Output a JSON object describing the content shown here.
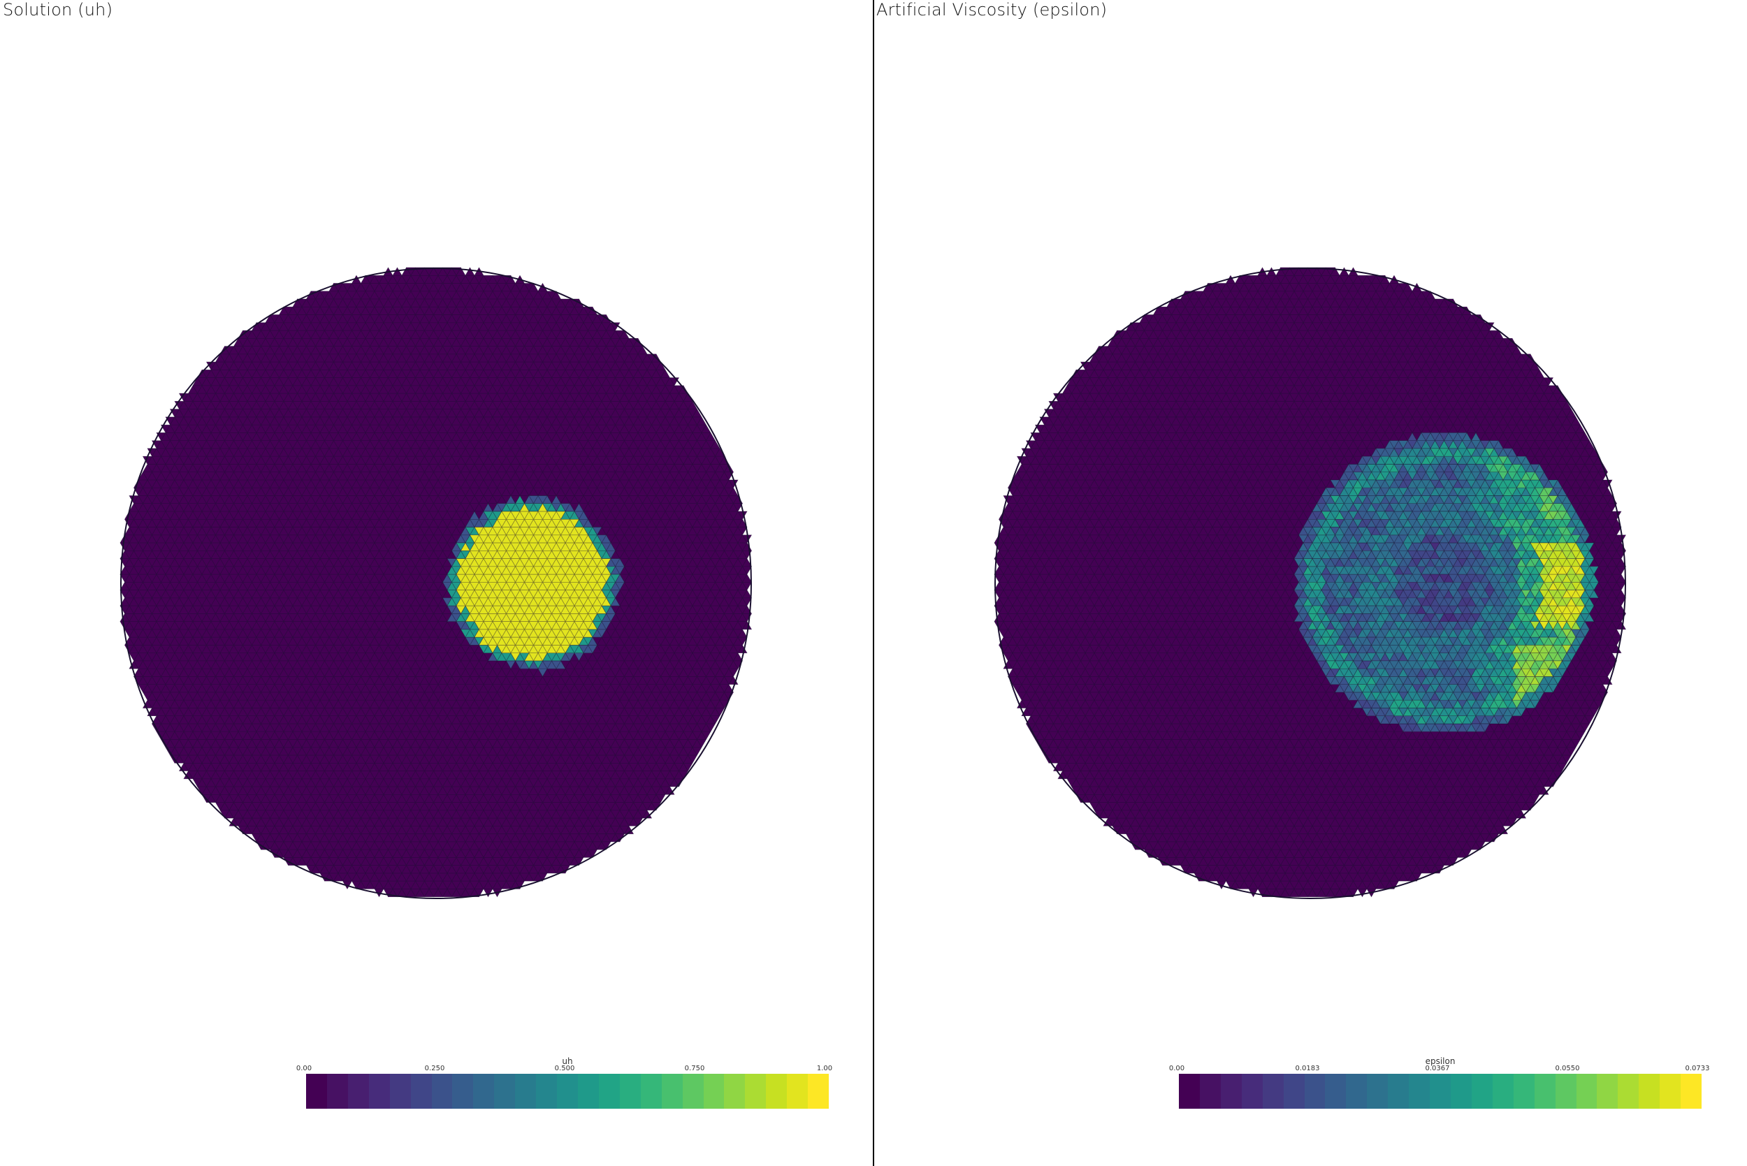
{
  "panels": [
    {
      "title": "Solution (uh)",
      "field": "uh",
      "colorbar": {
        "label": "uh",
        "ticks": [
          "0.00",
          "0.250",
          "0.500",
          "0.750",
          "1.00"
        ],
        "range": [
          0,
          1
        ]
      }
    },
    {
      "title": "Artificial Viscosity (epsilon)",
      "field": "epsilon",
      "colorbar": {
        "label": "epsilon",
        "ticks": [
          "0.00",
          "0.0183",
          "0.0367",
          "0.0550",
          "0.0733"
        ],
        "range": [
          0,
          0.0733
        ]
      }
    }
  ],
  "colormap": {
    "name": "viridis",
    "bands": 25,
    "colors": [
      "#440154",
      "#481a6c",
      "#472f7d",
      "#414487",
      "#39568c",
      "#31688e",
      "#2a788e",
      "#23888e",
      "#1f988b",
      "#22a884",
      "#35b779",
      "#54c568",
      "#7ad151",
      "#a5db36",
      "#d2e21b",
      "#fde725"
    ],
    "mesh_edge_color": "#1a1030"
  }
}
